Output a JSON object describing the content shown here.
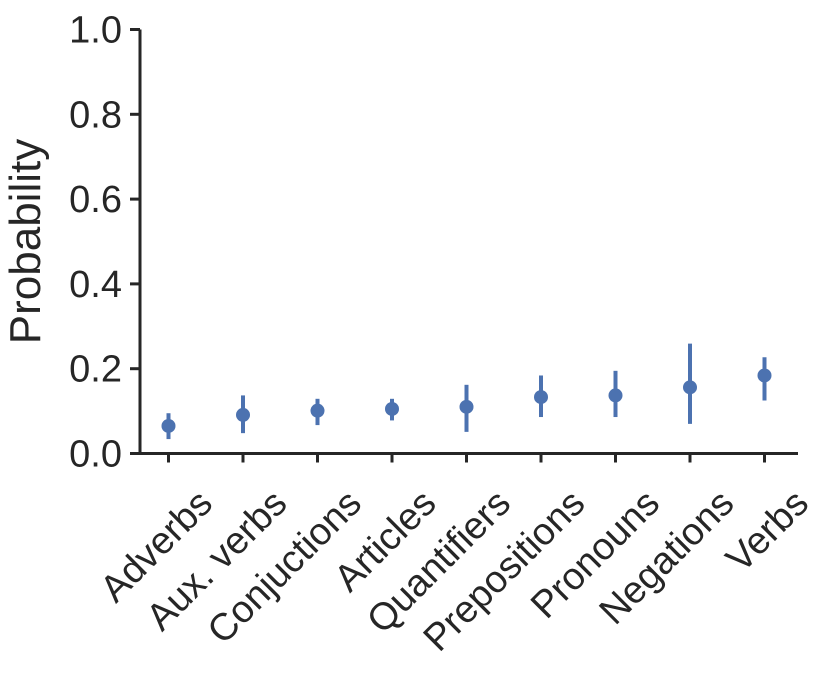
{
  "chart_data": {
    "type": "scatter",
    "subtype": "point-plot-with-error-bars",
    "title": "",
    "xlabel": "",
    "ylabel": "Probability",
    "categories": [
      "Adverbs",
      "Aux. verbs",
      "Conjuctions",
      "Articles",
      "Quantifiers",
      "Prepositions",
      "Pronouns",
      "Negations",
      "Verbs"
    ],
    "series": [
      {
        "name": "Probability",
        "values": [
          0.065,
          0.091,
          0.101,
          0.105,
          0.11,
          0.133,
          0.137,
          0.156,
          0.184
        ],
        "ci_low": [
          0.034,
          0.048,
          0.067,
          0.078,
          0.051,
          0.086,
          0.086,
          0.07,
          0.125
        ],
        "ci_high": [
          0.095,
          0.137,
          0.129,
          0.129,
          0.162,
          0.184,
          0.195,
          0.259,
          0.227
        ]
      }
    ],
    "ylim": [
      0.0,
      1.0
    ],
    "yticks": [
      0.0,
      0.2,
      0.4,
      0.6,
      0.8,
      1.0
    ],
    "ytick_labels": [
      "0.0",
      "0.2",
      "0.4",
      "0.6",
      "0.8",
      "1.0"
    ],
    "xtick_rotation_deg": 45,
    "grid": false,
    "legend": "none",
    "colors": {
      "marker": "#4C72B0",
      "axis": "#262626",
      "text": "#262626",
      "background": "#FFFFFF"
    }
  }
}
